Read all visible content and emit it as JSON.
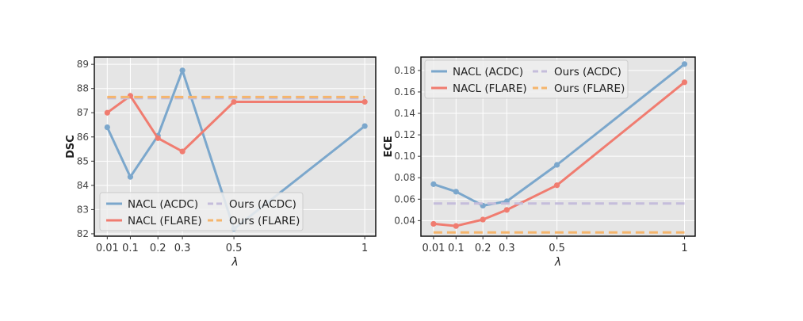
{
  "chart_data": [
    {
      "type": "line",
      "xlabel": "λ",
      "ylabel": "DSC",
      "x": [
        0.01,
        0.1,
        0.2,
        0.3,
        0.5,
        1
      ],
      "x_tick_labels": [
        "0.01",
        "0.1",
        "0.2",
        "0.3",
        "0.5",
        "1"
      ],
      "y_ticks": [
        82,
        83,
        84,
        85,
        86,
        87,
        88,
        89
      ],
      "y_tick_labels": [
        "82",
        "83",
        "84",
        "85",
        "86",
        "87",
        "88",
        "89"
      ],
      "ylim": [
        81.9,
        89.3
      ],
      "grid": true,
      "legend_position": "bottom-left",
      "series": [
        {
          "name": "NACL (ACDC)",
          "color": "#7ba7cc",
          "style": "solid",
          "markers": true,
          "values": [
            86.4,
            84.35,
            86.05,
            88.75,
            82.2,
            86.45
          ]
        },
        {
          "name": "NACL (FLARE)",
          "color": "#f07c70",
          "style": "solid",
          "markers": true,
          "values": [
            87.0,
            87.7,
            85.95,
            85.4,
            87.45,
            87.45
          ]
        },
        {
          "name": "Ours (ACDC)",
          "color": "#c5bddb",
          "style": "dashed",
          "markers": false,
          "values": [
            87.6,
            87.6,
            87.6,
            87.6,
            87.6,
            87.6
          ]
        },
        {
          "name": "Ours (FLARE)",
          "color": "#f5b56c",
          "style": "dashed",
          "markers": false,
          "values": [
            87.65,
            87.65,
            87.65,
            87.65,
            87.65,
            87.65
          ]
        }
      ]
    },
    {
      "type": "line",
      "xlabel": "λ",
      "ylabel": "ECE",
      "x": [
        0.01,
        0.1,
        0.2,
        0.3,
        0.5,
        1
      ],
      "x_tick_labels": [
        "0.01",
        "0.1",
        "0.2",
        "0.3",
        "0.5",
        "1"
      ],
      "y_ticks": [
        0.04,
        0.06,
        0.08,
        0.1,
        0.12,
        0.14,
        0.16,
        0.18
      ],
      "y_tick_labels": [
        "0.04",
        "0.06",
        "0.08",
        "0.10",
        "0.12",
        "0.14",
        "0.16",
        "0.18"
      ],
      "ylim": [
        0.0255,
        0.1925
      ],
      "grid": true,
      "legend_position": "top-left",
      "series": [
        {
          "name": "NACL (ACDC)",
          "color": "#7ba7cc",
          "style": "solid",
          "markers": true,
          "values": [
            0.074,
            0.067,
            0.054,
            0.058,
            0.092,
            0.186
          ]
        },
        {
          "name": "NACL (FLARE)",
          "color": "#f07c70",
          "style": "solid",
          "markers": true,
          "values": [
            0.037,
            0.035,
            0.041,
            0.05,
            0.073,
            0.169
          ]
        },
        {
          "name": "Ours (ACDC)",
          "color": "#c5bddb",
          "style": "dashed",
          "markers": false,
          "values": [
            0.056,
            0.056,
            0.056,
            0.056,
            0.056,
            0.056
          ]
        },
        {
          "name": "Ours (FLARE)",
          "color": "#f5b56c",
          "style": "dashed",
          "markers": false,
          "values": [
            0.029,
            0.029,
            0.029,
            0.029,
            0.029,
            0.029
          ]
        }
      ]
    }
  ]
}
